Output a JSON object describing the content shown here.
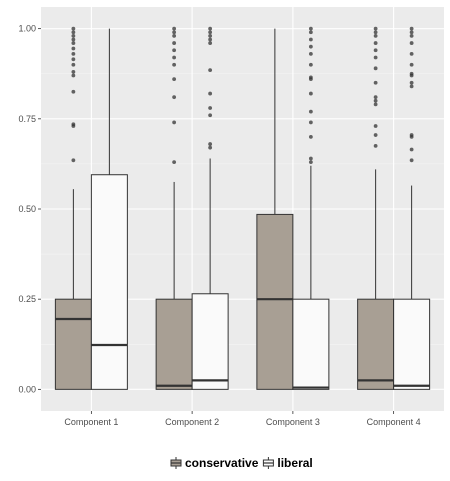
{
  "chart_data": {
    "type": "boxplot",
    "title": "",
    "xlabel": "",
    "ylabel": "",
    "ylim": [
      -0.06,
      1.06
    ],
    "y_ticks": [
      0.0,
      0.25,
      0.5,
      0.75,
      1.0
    ],
    "y_tick_labels": [
      "0.00",
      "0.25",
      "0.50",
      "0.75",
      "1.00"
    ],
    "categories": [
      "Component 1",
      "Component 2",
      "Component 3",
      "Component 4"
    ],
    "grid": true,
    "legend_position": "bottom",
    "series": [
      {
        "name": "conservative",
        "color": "#a89f94",
        "boxes": [
          {
            "q1": 0.0,
            "median": 0.195,
            "q3": 0.25,
            "whisker_low": 0.0,
            "whisker_high": 0.555,
            "outliers": [
              0.635,
              0.73,
              0.735,
              0.825,
              0.87,
              0.88,
              0.9,
              0.915,
              0.93,
              0.945,
              0.96,
              0.97,
              0.98,
              0.99,
              1.0
            ]
          },
          {
            "q1": 0.0,
            "median": 0.01,
            "q3": 0.25,
            "whisker_low": 0.0,
            "whisker_high": 0.575,
            "outliers": [
              0.63,
              0.74,
              0.81,
              0.86,
              0.9,
              0.92,
              0.94,
              0.96,
              0.98,
              0.99,
              1.0
            ]
          },
          {
            "q1": 0.0,
            "median": 0.25,
            "q3": 0.485,
            "whisker_low": 0.0,
            "whisker_high": 1.0,
            "outliers": []
          },
          {
            "q1": 0.0,
            "median": 0.025,
            "q3": 0.25,
            "whisker_low": 0.0,
            "whisker_high": 0.61,
            "outliers": [
              0.675,
              0.705,
              0.73,
              0.79,
              0.8,
              0.81,
              0.85,
              0.89,
              0.92,
              0.94,
              0.96,
              0.98,
              0.99,
              1.0
            ]
          }
        ]
      },
      {
        "name": "liberal",
        "color": "#fafafa",
        "boxes": [
          {
            "q1": 0.0,
            "median": 0.123,
            "q3": 0.595,
            "whisker_low": 0.0,
            "whisker_high": 1.0,
            "outliers": []
          },
          {
            "q1": 0.0,
            "median": 0.025,
            "q3": 0.265,
            "whisker_low": 0.0,
            "whisker_high": 0.64,
            "outliers": [
              0.67,
              0.68,
              0.76,
              0.78,
              0.82,
              0.885,
              0.96,
              0.97,
              0.98,
              0.99,
              1.0
            ]
          },
          {
            "q1": 0.0,
            "median": 0.005,
            "q3": 0.25,
            "whisker_low": 0.0,
            "whisker_high": 0.62,
            "outliers": [
              0.63,
              0.64,
              0.7,
              0.74,
              0.77,
              0.82,
              0.86,
              0.865,
              0.9,
              0.93,
              0.95,
              0.97,
              0.99,
              1.0
            ]
          },
          {
            "q1": 0.0,
            "median": 0.01,
            "q3": 0.25,
            "whisker_low": 0.0,
            "whisker_high": 0.565,
            "outliers": [
              0.635,
              0.665,
              0.7,
              0.705,
              0.84,
              0.85,
              0.87,
              0.875,
              0.9,
              0.93,
              0.96,
              0.98,
              0.99,
              1.0
            ]
          }
        ]
      }
    ]
  },
  "colors": {
    "panel_background": "#ebebeb",
    "grid_major": "#ffffff",
    "box_outline": "#333333",
    "outlier": "#333333",
    "tick_text": "#4d4d4d"
  }
}
